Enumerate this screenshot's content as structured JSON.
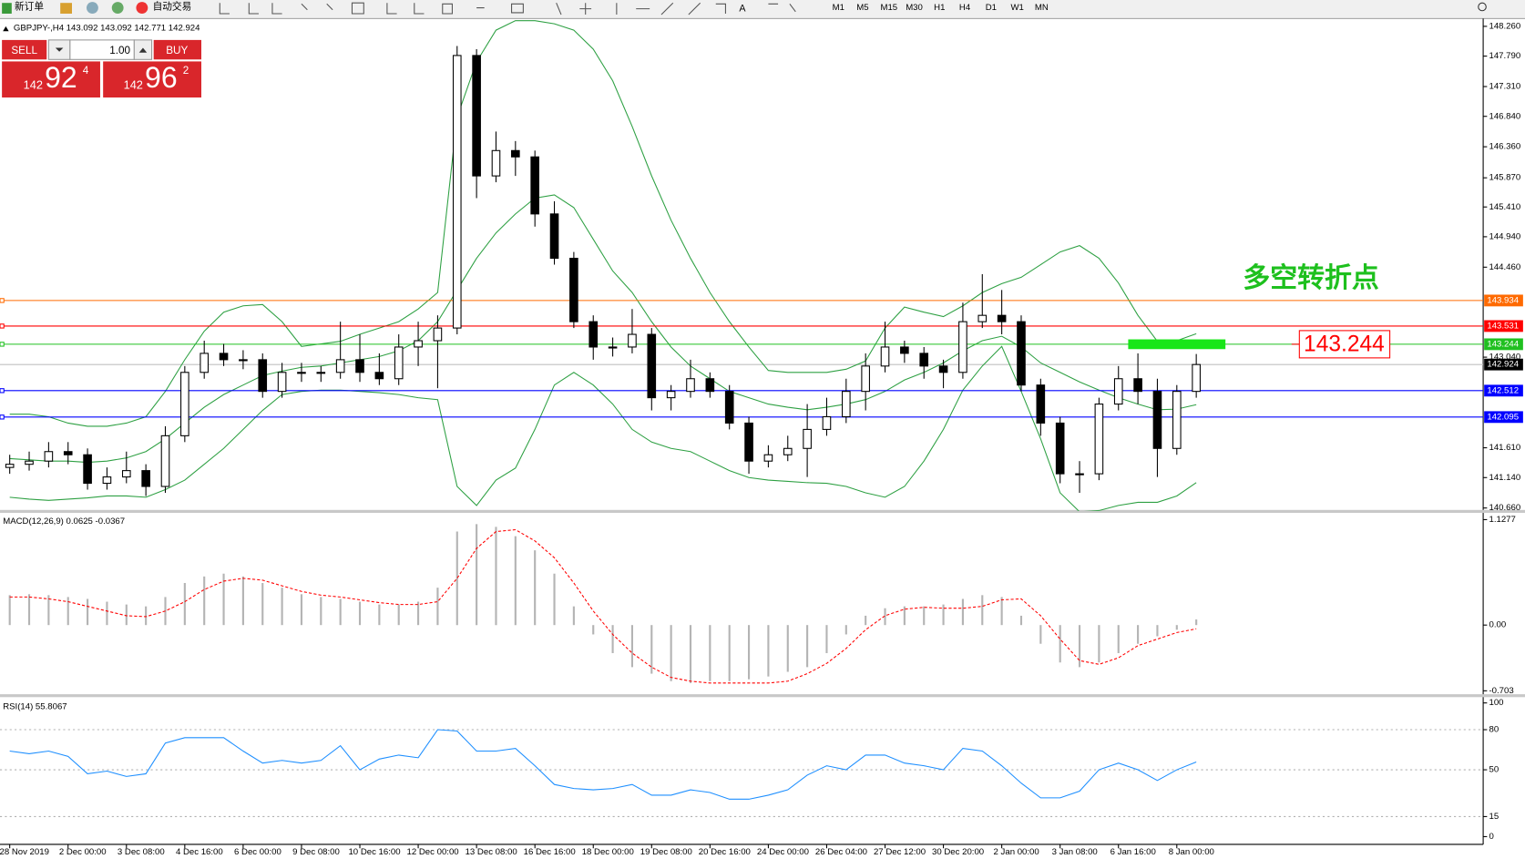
{
  "toolbar": {
    "new_order": "新订单",
    "auto_trading": "自动交易",
    "timeframes": [
      "M1",
      "M5",
      "M15",
      "M30",
      "H1",
      "H4",
      "D1",
      "W1",
      "MN"
    ]
  },
  "trade_panel": {
    "sell": "SELL",
    "buy": "BUY",
    "lots": "1.00",
    "sell_big": "142",
    "sell_main": "92",
    "sell_sup": "4",
    "buy_big": "142",
    "buy_main": "96",
    "buy_sup": "2"
  },
  "chart_data": [
    {
      "type": "candlestick",
      "title": "GBPJPY-,H4 143.092 143.092 142.771 142.924",
      "categories": [
        "28 Nov 2019",
        null,
        null,
        "2 Dec 00:00",
        null,
        null,
        "3 Dec 08:00",
        null,
        null,
        "4 Dec 16:00",
        null,
        null,
        "6 Dec 00:00",
        null,
        null,
        "9 Dec 08:00",
        null,
        null,
        "10 Dec 16:00",
        null,
        null,
        "12 Dec 00:00",
        null,
        null,
        "13 Dec 08:00",
        null,
        null,
        "16 Dec 16:00",
        null,
        null,
        "18 Dec 00:00",
        null,
        null,
        "19 Dec 08:00",
        null,
        null,
        "20 Dec 16:00",
        null,
        null,
        "24 Dec 00:00",
        null,
        null,
        "26 Dec 04:00",
        null,
        null,
        "27 Dec 12:00",
        null,
        null,
        "30 Dec 20:00",
        null,
        null,
        "2 Jan 00:00",
        null,
        null,
        "3 Jan 08:00",
        null,
        null,
        "6 Jan 16:00",
        null,
        null,
        "8 Jan 00:00",
        null
      ],
      "open": [
        141.3,
        141.35,
        141.4,
        141.55,
        141.5,
        141.05,
        141.15,
        141.25,
        141.0,
        141.8,
        142.8,
        143.1,
        143.0,
        143.0,
        142.5,
        142.8,
        142.8,
        142.8,
        143.0,
        142.8,
        142.7,
        143.2,
        143.3,
        143.5,
        147.8,
        145.9,
        146.3,
        146.2,
        145.3,
        144.6,
        143.6,
        143.2,
        143.2,
        143.4,
        142.4,
        142.5,
        142.7,
        142.5,
        142.0,
        141.4,
        141.5,
        141.6,
        141.9,
        142.1,
        142.5,
        142.9,
        143.2,
        143.1,
        142.9,
        142.8,
        143.6,
        143.7,
        143.6,
        142.6,
        142.0,
        141.2,
        141.2,
        142.3,
        142.7,
        142.5,
        141.6,
        142.5
      ],
      "high": [
        141.5,
        141.55,
        141.7,
        141.7,
        141.6,
        141.3,
        141.55,
        141.35,
        141.95,
        142.9,
        143.3,
        143.25,
        143.15,
        143.1,
        142.95,
        142.95,
        142.9,
        143.6,
        143.4,
        143.1,
        143.4,
        143.6,
        143.7,
        147.95,
        147.9,
        146.6,
        146.45,
        146.3,
        145.5,
        144.7,
        143.7,
        143.35,
        143.8,
        143.5,
        142.6,
        143.0,
        142.8,
        142.6,
        142.1,
        141.65,
        141.8,
        142.3,
        142.4,
        142.7,
        143.1,
        143.6,
        143.3,
        143.2,
        143.0,
        143.9,
        144.35,
        144.1,
        143.7,
        142.7,
        142.1,
        141.4,
        142.4,
        142.9,
        143.1,
        142.7,
        142.6,
        143.09
      ],
      "low": [
        141.2,
        141.25,
        141.3,
        141.35,
        140.95,
        140.95,
        141.05,
        140.85,
        140.9,
        141.7,
        142.7,
        142.9,
        142.85,
        142.4,
        142.4,
        142.65,
        142.65,
        142.7,
        142.65,
        142.6,
        142.6,
        142.9,
        142.55,
        143.4,
        145.55,
        145.8,
        145.9,
        145.1,
        144.5,
        143.5,
        143.0,
        143.05,
        143.1,
        142.2,
        142.2,
        142.4,
        142.4,
        141.9,
        141.2,
        141.3,
        141.4,
        141.15,
        141.8,
        142.0,
        142.2,
        142.8,
        142.95,
        142.7,
        142.55,
        142.7,
        143.5,
        143.4,
        142.5,
        141.8,
        141.05,
        140.9,
        141.1,
        142.2,
        142.3,
        141.15,
        141.5,
        142.4
      ],
      "close": [
        141.35,
        141.4,
        141.55,
        141.5,
        141.05,
        141.15,
        141.25,
        141.0,
        141.8,
        142.8,
        143.1,
        143.0,
        143.0,
        142.5,
        142.8,
        142.8,
        142.8,
        143.0,
        142.8,
        142.7,
        143.2,
        143.3,
        143.5,
        147.8,
        145.9,
        146.3,
        146.2,
        145.3,
        144.6,
        143.6,
        143.2,
        143.2,
        143.4,
        142.4,
        142.5,
        142.7,
        142.5,
        142.0,
        141.4,
        141.5,
        141.6,
        141.9,
        142.1,
        142.5,
        142.9,
        143.2,
        143.1,
        142.9,
        142.8,
        143.6,
        143.7,
        143.6,
        142.6,
        142.0,
        141.2,
        141.2,
        142.3,
        142.7,
        142.5,
        141.6,
        142.5,
        142.924
      ],
      "up_color": "#ffffff",
      "down_color": "#000000",
      "bands": {
        "color": "#2ea043",
        "upper": [
          142.14,
          142.14,
          142.1,
          142.0,
          141.95,
          141.95,
          142.0,
          142.1,
          142.5,
          143.0,
          143.45,
          143.75,
          143.85,
          143.87,
          143.6,
          143.21,
          143.25,
          143.29,
          143.4,
          143.5,
          143.6,
          143.8,
          144.06,
          146.83,
          147.7,
          148.2,
          148.35,
          148.35,
          148.3,
          148.2,
          147.9,
          147.4,
          146.68,
          145.9,
          145.2,
          144.6,
          144.06,
          143.6,
          143.2,
          142.83,
          142.8,
          142.8,
          142.8,
          142.85,
          142.98,
          143.5,
          143.83,
          143.75,
          143.68,
          143.85,
          144.06,
          144.2,
          144.3,
          144.5,
          144.7,
          144.8,
          144.6,
          144.21,
          143.7,
          143.29,
          143.3,
          143.41
        ],
        "middle": [
          141.44,
          141.42,
          141.4,
          141.4,
          141.38,
          141.4,
          141.45,
          141.55,
          141.75,
          142.0,
          142.25,
          142.45,
          142.6,
          142.75,
          142.82,
          142.88,
          142.9,
          142.95,
          143.0,
          143.05,
          143.14,
          143.3,
          143.6,
          144.1,
          144.6,
          145.0,
          145.3,
          145.55,
          145.6,
          145.4,
          144.9,
          144.4,
          144.06,
          143.6,
          143.2,
          142.9,
          142.7,
          142.5,
          142.4,
          142.3,
          142.25,
          142.21,
          142.25,
          142.3,
          142.37,
          142.5,
          142.68,
          142.8,
          142.95,
          143.14,
          143.3,
          143.37,
          143.2,
          142.95,
          142.8,
          142.65,
          142.52,
          142.4,
          142.3,
          142.21,
          142.22,
          142.29
        ],
        "lower": [
          140.83,
          140.8,
          140.78,
          140.8,
          140.82,
          140.85,
          140.85,
          140.83,
          140.95,
          141.1,
          141.35,
          141.6,
          141.9,
          142.2,
          142.45,
          142.5,
          142.52,
          142.52,
          142.5,
          142.48,
          142.45,
          142.4,
          142.37,
          141.0,
          140.7,
          141.1,
          141.29,
          141.9,
          142.6,
          142.8,
          142.6,
          142.3,
          141.9,
          141.7,
          141.6,
          141.55,
          141.4,
          141.25,
          141.14,
          141.1,
          141.08,
          141.06,
          141.05,
          141.0,
          140.9,
          140.83,
          141.0,
          141.4,
          141.9,
          142.52,
          142.9,
          143.21,
          142.5,
          141.75,
          140.9,
          140.6,
          140.62,
          140.7,
          140.75,
          140.75,
          140.85,
          141.06
        ]
      },
      "levels": [
        {
          "value": 143.934,
          "color": "#ff6a00"
        },
        {
          "value": 143.531,
          "color": "#ff0000"
        },
        {
          "value": 143.244,
          "color": "#20c020"
        },
        {
          "value": 142.512,
          "color": "#0000ff"
        },
        {
          "value": 142.095,
          "color": "#0000ff"
        }
      ],
      "current": {
        "value": 142.924,
        "color": "#c0c0c0"
      },
      "annotation": {
        "text": "多空转折点",
        "color": "#1ec01e"
      },
      "marker": {
        "value": 143.244,
        "color": "#ff0000",
        "bar_color": "#19e619"
      },
      "ylim": [
        140.614,
        148.368
      ],
      "yticks": [
        {
          "value": 148.26,
          "label": "148.260"
        },
        {
          "value": 147.79,
          "label": "147.790"
        },
        {
          "value": 147.31,
          "label": "147.310"
        },
        {
          "value": 146.84,
          "label": "146.840"
        },
        {
          "value": 146.36,
          "label": "146.360"
        },
        {
          "value": 145.87,
          "label": "145.870"
        },
        {
          "value": 145.41,
          "label": "145.410"
        },
        {
          "value": 144.94,
          "label": "144.940"
        },
        {
          "value": 144.46,
          "label": "144.460"
        },
        {
          "value": 143.04,
          "label": "143.040"
        },
        {
          "value": 141.61,
          "label": "141.610"
        },
        {
          "value": 141.14,
          "label": "141.140"
        },
        {
          "value": 140.66,
          "label": "140.660"
        }
      ]
    },
    {
      "type": "macd",
      "title": "MACD(12,26,9) 0.0625 -0.0367",
      "histogram": {
        "color": "#b4b4b4",
        "values": [
          0.32,
          0.33,
          0.32,
          0.3,
          0.28,
          0.25,
          0.22,
          0.2,
          0.3,
          0.45,
          0.52,
          0.55,
          0.52,
          0.45,
          0.4,
          0.33,
          0.3,
          0.28,
          0.25,
          0.22,
          0.22,
          0.25,
          0.4,
          1.0,
          1.08,
          1.05,
          0.95,
          0.8,
          0.55,
          0.2,
          -0.1,
          -0.3,
          -0.45,
          -0.52,
          -0.6,
          -0.62,
          -0.6,
          -0.6,
          -0.58,
          -0.55,
          -0.5,
          -0.45,
          -0.3,
          -0.1,
          0.1,
          0.18,
          0.2,
          0.2,
          0.22,
          0.28,
          0.32,
          0.3,
          0.1,
          -0.2,
          -0.4,
          -0.45,
          -0.4,
          -0.3,
          -0.2,
          -0.12,
          -0.05,
          0.06
        ]
      },
      "signal": {
        "color": "#ff0000",
        "values": [
          0.3,
          0.3,
          0.28,
          0.25,
          0.2,
          0.15,
          0.1,
          0.09,
          0.15,
          0.25,
          0.38,
          0.47,
          0.5,
          0.48,
          0.42,
          0.36,
          0.32,
          0.3,
          0.27,
          0.24,
          0.22,
          0.22,
          0.25,
          0.5,
          0.82,
          1.0,
          1.02,
          0.9,
          0.72,
          0.45,
          0.15,
          -0.1,
          -0.3,
          -0.45,
          -0.56,
          -0.6,
          -0.62,
          -0.62,
          -0.62,
          -0.62,
          -0.6,
          -0.52,
          -0.41,
          -0.25,
          -0.05,
          0.1,
          0.17,
          0.19,
          0.18,
          0.18,
          0.2,
          0.27,
          0.28,
          0.1,
          -0.15,
          -0.38,
          -0.42,
          -0.35,
          -0.22,
          -0.15,
          -0.08,
          -0.04
        ]
      },
      "ylim": [
        -0.75,
        1.2
      ],
      "yticks": [
        1.1277,
        {
          "value": 0,
          "label": "0.00"
        },
        -0.703
      ]
    },
    {
      "type": "line",
      "title": "RSI(14) 55.8067",
      "color": "#1e8fff",
      "values": [
        64,
        62,
        64,
        60,
        47,
        49,
        45,
        47,
        70,
        74,
        74,
        74,
        64,
        55,
        57,
        55,
        57,
        68,
        50,
        58,
        61,
        59,
        80,
        79,
        64,
        64,
        66,
        53,
        39,
        36,
        35,
        36,
        39,
        31,
        31,
        35,
        33,
        28,
        28,
        31,
        35,
        46,
        53,
        50,
        61,
        61,
        55,
        53,
        50,
        66,
        64,
        53,
        40,
        29,
        29,
        34,
        50,
        55,
        50,
        42,
        50,
        55.8
      ],
      "levels": [
        80,
        50,
        15
      ],
      "ylim": [
        -5.8,
        103.6
      ],
      "yticks": [
        100,
        80,
        50,
        15,
        0
      ]
    }
  ]
}
